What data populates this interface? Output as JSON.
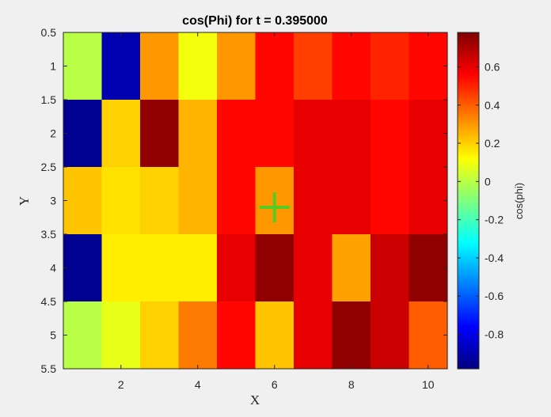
{
  "chart_data": {
    "type": "heatmap",
    "title": "cos(Phi) for t = 0.395000",
    "xlabel": "X",
    "ylabel": "Y",
    "colorbar_label": "cos(phi)",
    "colormap": "jet",
    "x": [
      1,
      2,
      3,
      4,
      5,
      6,
      7,
      8,
      9,
      10
    ],
    "y": [
      1,
      2,
      3,
      4,
      5
    ],
    "values": [
      [
        0.0,
        -0.9,
        0.3,
        0.1,
        0.3,
        0.55,
        0.45,
        0.55,
        0.5,
        0.55
      ],
      [
        -0.95,
        0.2,
        0.75,
        0.25,
        0.55,
        0.55,
        0.6,
        0.6,
        0.55,
        0.6
      ],
      [
        0.22,
        0.17,
        0.2,
        0.25,
        0.55,
        0.3,
        0.6,
        0.6,
        0.55,
        0.6
      ],
      [
        -0.95,
        0.15,
        0.15,
        0.15,
        0.6,
        0.75,
        0.6,
        0.28,
        0.65,
        0.75
      ],
      [
        0.0,
        0.08,
        0.2,
        0.35,
        0.55,
        0.22,
        0.6,
        0.75,
        0.65,
        0.4
      ]
    ],
    "xlim": [
      0.5,
      10.5
    ],
    "ylim": [
      0.5,
      5.5
    ],
    "y_reversed": true,
    "clim": [
      -0.98,
      0.78
    ],
    "xticks": [
      2,
      4,
      6,
      8,
      10
    ],
    "xtick_labels": [
      "2",
      "4",
      "6",
      "8",
      "10"
    ],
    "yticks": [
      0.5,
      1,
      1.5,
      2,
      2.5,
      3,
      3.5,
      4,
      4.5,
      5,
      5.5
    ],
    "ytick_labels": [
      "0.5",
      "1",
      "1.5",
      "2",
      "2.5",
      "3",
      "3.5",
      "4",
      "4.5",
      "5",
      "5.5"
    ],
    "cbar_ticks": [
      -0.8,
      -0.6,
      -0.4,
      -0.2,
      0,
      0.2,
      0.4,
      0.6
    ],
    "cbar_tick_labels": [
      "-0.8",
      "-0.6",
      "-0.4",
      "-0.2",
      "0",
      "0.2",
      "0.4",
      "0.6"
    ],
    "marker": {
      "x": 6,
      "y": 3.1,
      "symbol": "plus",
      "color": "#55cc22"
    },
    "background": "#f0f0f0"
  }
}
